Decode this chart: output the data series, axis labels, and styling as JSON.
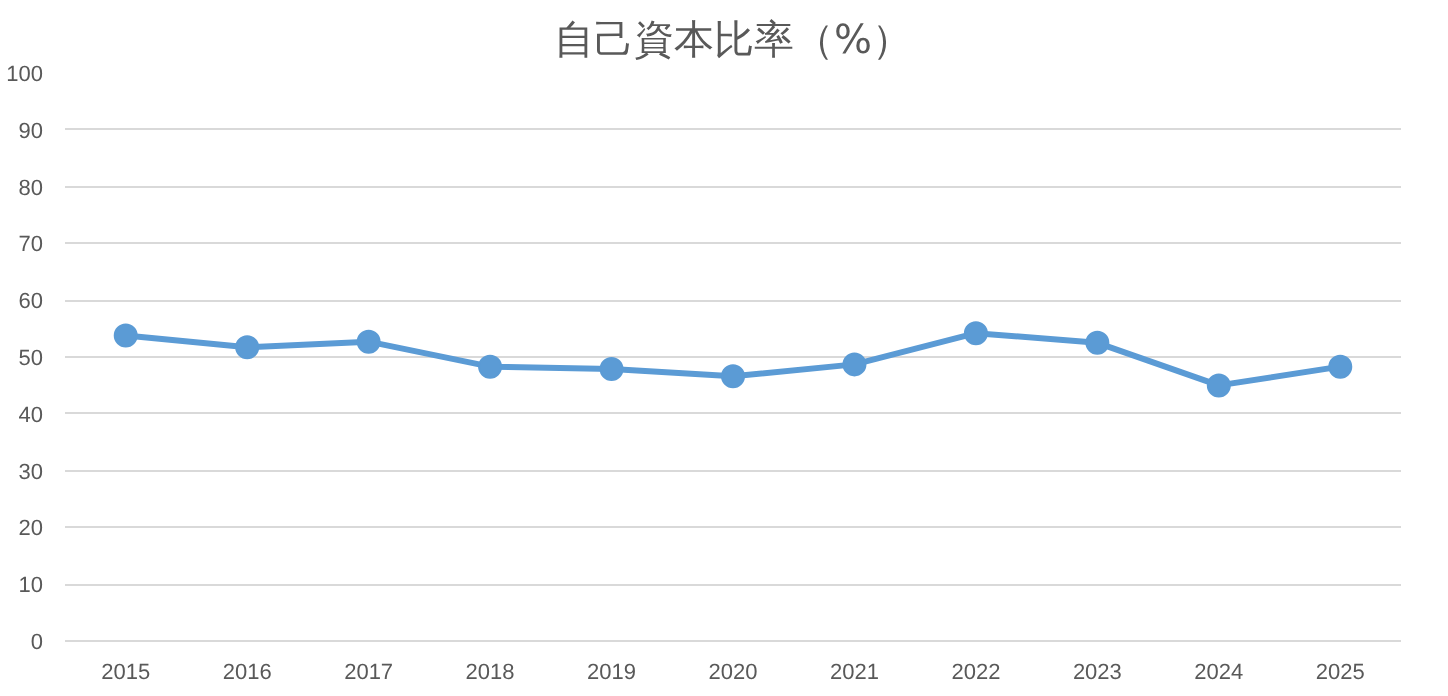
{
  "chart_data": {
    "type": "line",
    "title": "自己資本比率（%）",
    "categories": [
      "2015",
      "2016",
      "2017",
      "2018",
      "2019",
      "2020",
      "2021",
      "2022",
      "2023",
      "2024",
      "2025"
    ],
    "series": [
      {
        "color": "#5b9bd5",
        "values": [
          53.8,
          51.7,
          52.7,
          48.3,
          47.9,
          46.6,
          48.7,
          54.2,
          52.5,
          45.0,
          48.3
        ]
      }
    ],
    "ylim": [
      0,
      100
    ],
    "yticks": [
      0,
      10,
      20,
      30,
      40,
      50,
      60,
      70,
      80,
      90,
      100
    ],
    "grid": "y",
    "marker": "circle"
  }
}
